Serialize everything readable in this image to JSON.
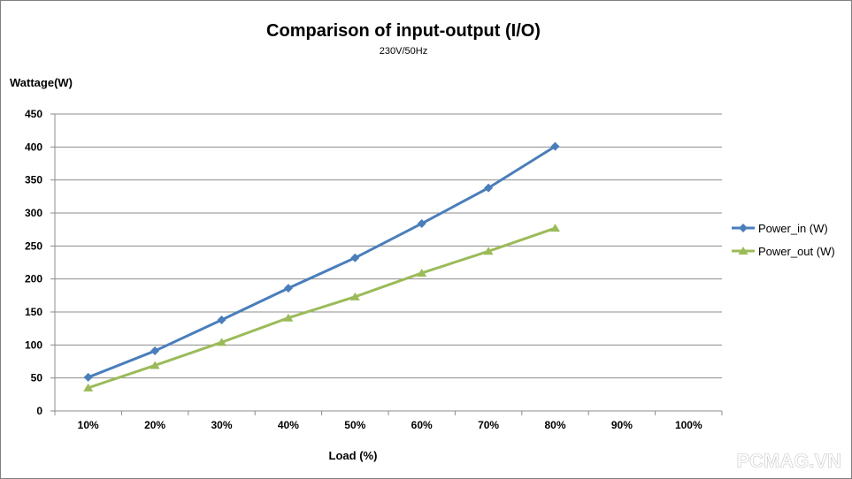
{
  "chart_data": {
    "type": "line",
    "title": "Comparison of input-output (I/O)",
    "subtitle": "230V/50Hz",
    "ylabel": "Wattage(W)",
    "xlabel": "Load (%)",
    "categories": [
      "10%",
      "20%",
      "30%",
      "40%",
      "50%",
      "60%",
      "70%",
      "80%",
      "90%",
      "100%"
    ],
    "ylim": [
      0,
      450
    ],
    "yticks": [
      0,
      50,
      100,
      150,
      200,
      250,
      300,
      350,
      400,
      450
    ],
    "grid": true,
    "legend_position": "right",
    "series": [
      {
        "name": "Power_in (W)",
        "color": "#4a7ebb",
        "marker": "diamond",
        "values": [
          51,
          91,
          138,
          186,
          232,
          284,
          338,
          401,
          null,
          null
        ]
      },
      {
        "name": "Power_out (W)",
        "color": "#9bbb59",
        "marker": "triangle",
        "values": [
          35,
          69,
          104,
          141,
          173,
          209,
          242,
          277,
          null,
          null
        ]
      }
    ]
  },
  "watermark": "PCMAG.VN"
}
